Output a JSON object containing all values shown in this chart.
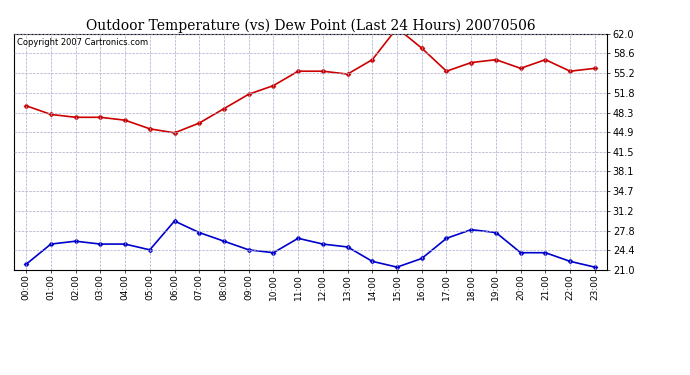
{
  "title": "Outdoor Temperature (vs) Dew Point (Last 24 Hours) 20070506",
  "copyright_text": "Copyright 2007 Cartronics.com",
  "x_labels": [
    "00:00",
    "01:00",
    "02:00",
    "03:00",
    "04:00",
    "05:00",
    "06:00",
    "07:00",
    "08:00",
    "09:00",
    "10:00",
    "11:00",
    "12:00",
    "13:00",
    "14:00",
    "15:00",
    "16:00",
    "17:00",
    "18:00",
    "19:00",
    "20:00",
    "21:00",
    "22:00",
    "23:00"
  ],
  "temp_data": [
    49.5,
    48.0,
    47.5,
    47.5,
    47.0,
    45.5,
    44.8,
    46.5,
    49.0,
    51.5,
    53.0,
    55.5,
    55.5,
    55.0,
    57.5,
    63.0,
    59.5,
    55.5,
    57.0,
    57.5,
    56.0,
    57.5,
    55.5,
    56.0
  ],
  "dew_data": [
    22.0,
    25.5,
    26.0,
    25.5,
    25.5,
    24.5,
    29.5,
    27.5,
    26.0,
    24.5,
    24.0,
    26.5,
    25.5,
    25.0,
    22.5,
    21.5,
    23.0,
    26.5,
    28.0,
    27.5,
    24.0,
    24.0,
    22.5,
    21.5
  ],
  "temp_color": "#cc0000",
  "dew_color": "#0000cc",
  "bg_color": "#ffffff",
  "plot_bg_color": "#ffffff",
  "grid_color": "#aaaacc",
  "y_ticks": [
    21.0,
    24.4,
    27.8,
    31.2,
    34.7,
    38.1,
    41.5,
    44.9,
    48.3,
    51.8,
    55.2,
    58.6,
    62.0
  ],
  "ylim_min": 21.0,
  "ylim_max": 62.0,
  "marker": "D",
  "marker_size": 2.5,
  "line_width": 1.2
}
